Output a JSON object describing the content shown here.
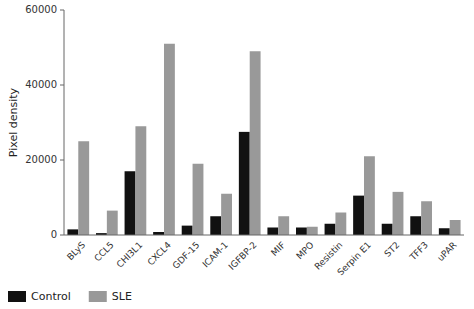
{
  "chart_data": {
    "type": "bar",
    "categories": [
      "BLyS",
      "CCL5",
      "CHI3L1",
      "CXCL4",
      "GDF-15",
      "ICAM-1",
      "IGFBP-2",
      "MIF",
      "MPO",
      "Resistin",
      "Serpin E1",
      "ST2",
      "TFF3",
      "uPAR"
    ],
    "series": [
      {
        "name": "Control",
        "color": "#111111",
        "values": [
          1500,
          500,
          17000,
          800,
          2500,
          5000,
          27500,
          2000,
          2000,
          3000,
          10500,
          3000,
          5000,
          1800
        ]
      },
      {
        "name": "SLE",
        "color": "#999999",
        "values": [
          25000,
          6500,
          29000,
          51000,
          19000,
          11000,
          49000,
          5000,
          2200,
          6000,
          21000,
          11500,
          9000,
          4000
        ]
      }
    ],
    "ylabel": "Pixel density",
    "ylim": [
      0,
      60000
    ],
    "yticks": [
      0,
      20000,
      40000,
      60000
    ],
    "grid": false,
    "legend": "lower left"
  }
}
